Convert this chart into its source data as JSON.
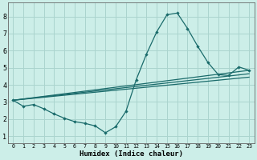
{
  "xlabel": "Humidex (Indice chaleur)",
  "bg_color": "#cceee8",
  "grid_color": "#aad4ce",
  "line_color": "#1a6b6b",
  "xlim": [
    -0.5,
    23.5
  ],
  "ylim": [
    0.6,
    8.8
  ],
  "xticks": [
    0,
    1,
    2,
    3,
    4,
    5,
    6,
    7,
    8,
    9,
    10,
    11,
    12,
    13,
    14,
    15,
    16,
    17,
    18,
    19,
    20,
    21,
    22,
    23
  ],
  "yticks": [
    1,
    2,
    3,
    4,
    5,
    6,
    7,
    8
  ],
  "spiky_line": {
    "x": [
      0,
      1,
      2,
      3,
      4,
      5,
      6,
      7,
      8,
      9,
      10,
      11,
      12,
      13,
      14,
      15,
      16,
      17,
      18,
      19,
      20,
      21,
      22,
      23
    ],
    "y": [
      3.1,
      2.75,
      2.85,
      2.6,
      2.3,
      2.05,
      1.85,
      1.75,
      1.6,
      1.2,
      1.55,
      2.45,
      4.3,
      5.8,
      7.1,
      8.1,
      8.2,
      7.3,
      6.25,
      5.3,
      4.6,
      4.55,
      5.05,
      4.85
    ]
  },
  "diagonal_lines": [
    {
      "x": [
        0,
        23
      ],
      "y": [
        3.1,
        4.85
      ]
    },
    {
      "x": [
        0,
        23
      ],
      "y": [
        3.1,
        4.65
      ]
    },
    {
      "x": [
        0,
        23
      ],
      "y": [
        3.1,
        4.45
      ]
    }
  ]
}
